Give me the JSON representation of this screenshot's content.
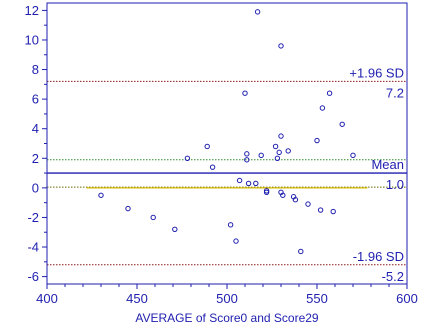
{
  "chart_data": {
    "type": "scatter",
    "title": "",
    "xlabel": "AVERAGE of Score0 and Score29",
    "ylabel": "",
    "xlim": [
      400,
      600
    ],
    "ylim": [
      -6.5,
      12.5
    ],
    "x_ticks": [
      400,
      450,
      500,
      550,
      600
    ],
    "y_ticks": [
      -6,
      -4,
      -2,
      0,
      2,
      4,
      6,
      8,
      10,
      12
    ],
    "grid": false,
    "points": [
      {
        "x": 430,
        "y": -0.5
      },
      {
        "x": 445,
        "y": -1.4
      },
      {
        "x": 459,
        "y": -2.0
      },
      {
        "x": 471,
        "y": -2.8
      },
      {
        "x": 478,
        "y": 2.0
      },
      {
        "x": 489,
        "y": 2.8
      },
      {
        "x": 492,
        "y": 1.4
      },
      {
        "x": 502,
        "y": -2.5
      },
      {
        "x": 505,
        "y": -3.6
      },
      {
        "x": 507,
        "y": 0.5
      },
      {
        "x": 510,
        "y": 6.4
      },
      {
        "x": 511,
        "y": 1.9
      },
      {
        "x": 511,
        "y": 2.3
      },
      {
        "x": 512,
        "y": 0.3
      },
      {
        "x": 516,
        "y": 0.3
      },
      {
        "x": 517,
        "y": 11.9
      },
      {
        "x": 519,
        "y": 2.2
      },
      {
        "x": 522,
        "y": -0.3
      },
      {
        "x": 522,
        "y": -0.2
      },
      {
        "x": 527,
        "y": 2.8
      },
      {
        "x": 528,
        "y": 2.0
      },
      {
        "x": 529,
        "y": 2.4
      },
      {
        "x": 530,
        "y": 9.6
      },
      {
        "x": 530,
        "y": 3.5
      },
      {
        "x": 530,
        "y": -0.3
      },
      {
        "x": 531,
        "y": -0.5
      },
      {
        "x": 534,
        "y": 2.5
      },
      {
        "x": 537,
        "y": -0.6
      },
      {
        "x": 538,
        "y": -0.8
      },
      {
        "x": 541,
        "y": -4.3
      },
      {
        "x": 545,
        "y": -1.1
      },
      {
        "x": 550,
        "y": 3.2
      },
      {
        "x": 552,
        "y": -1.5
      },
      {
        "x": 553,
        "y": 5.4
      },
      {
        "x": 557,
        "y": 6.4
      },
      {
        "x": 559,
        "y": -1.6
      },
      {
        "x": 564,
        "y": 4.3
      },
      {
        "x": 570,
        "y": 2.2
      }
    ],
    "lines": [
      {
        "role": "upper-limit",
        "y": 7.2,
        "label": "+1.96 SD",
        "value_label": "7.2",
        "color": "#8b1a1a",
        "style": "dotted",
        "x_range": [
          400,
          600
        ]
      },
      {
        "role": "mean",
        "y": 1.0,
        "label": "Mean",
        "value_label": "1.0",
        "color": "#1f1fb0",
        "style": "solid",
        "x_range": [
          400,
          600
        ]
      },
      {
        "role": "ci-upper",
        "y": 1.9,
        "label": "",
        "value_label": "",
        "color": "#2e8b2e",
        "style": "dotted",
        "x_range": [
          400,
          600
        ]
      },
      {
        "role": "ci-lower",
        "y": 0.05,
        "label": "",
        "value_label": "",
        "color": "#6b6b00",
        "style": "dotted",
        "x_range": [
          400,
          600
        ]
      },
      {
        "role": "zero",
        "y": 0.0,
        "label": "",
        "value_label": "",
        "color": "#d4b800",
        "style": "solid",
        "x_range": [
          422,
          578
        ]
      },
      {
        "role": "lower-limit",
        "y": -5.2,
        "label": "-1.96 SD",
        "value_label": "-5.2",
        "color": "#8b1a1a",
        "style": "dotted",
        "x_range": [
          400,
          600
        ]
      }
    ],
    "colors": {
      "axis": "#1f1fb0",
      "text": "#1f1fb0",
      "marker": "#1f1fb0"
    }
  }
}
